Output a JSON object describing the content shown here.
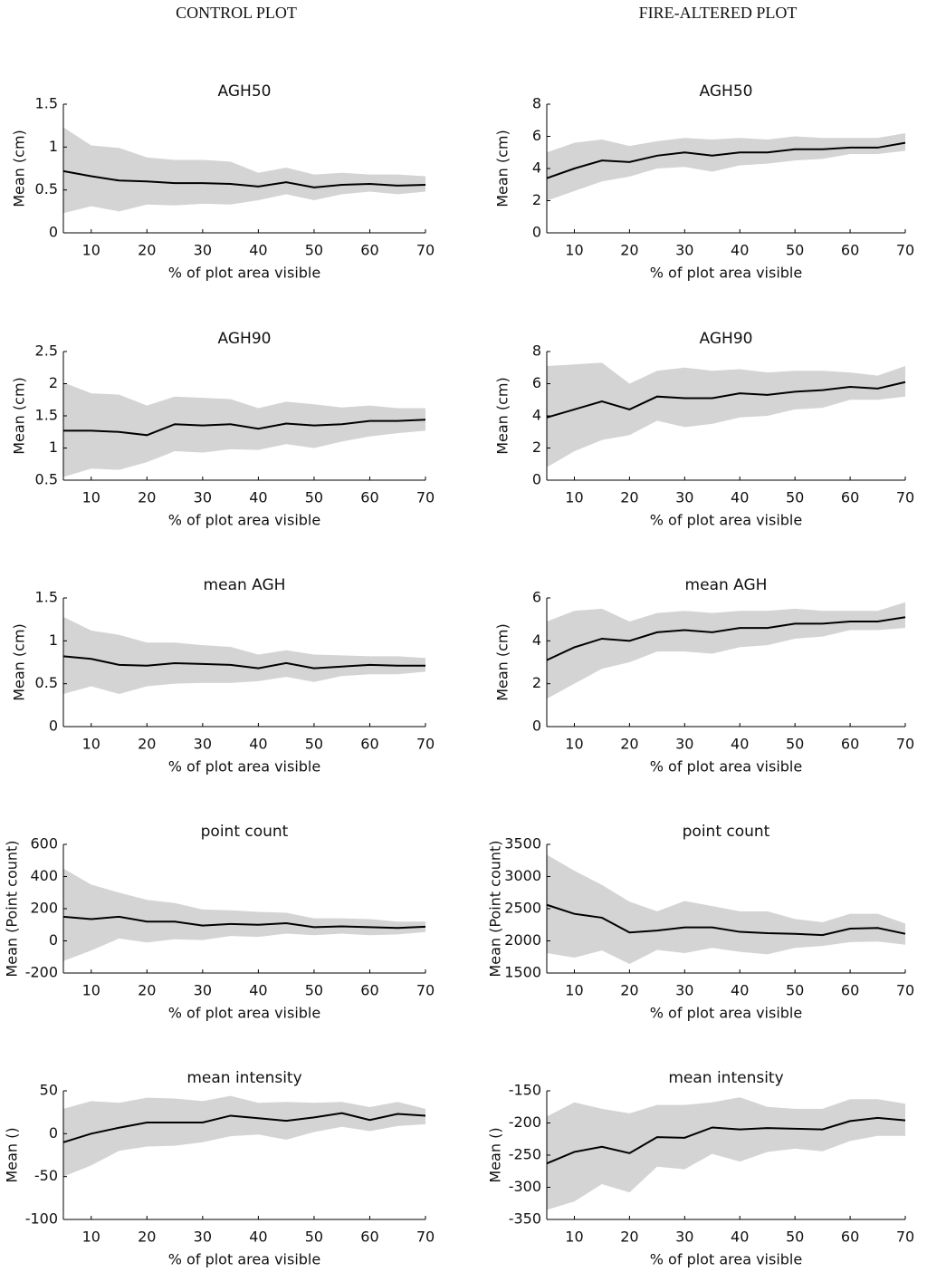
{
  "columns": [
    "CONTROL PLOT",
    "FIRE-ALTERED PLOT"
  ],
  "chart_data": [
    {
      "type": "line",
      "title": "AGH50",
      "xlabel": "% of plot area visible",
      "ylabel": "Mean (cm)",
      "x": [
        5,
        10,
        15,
        20,
        25,
        30,
        35,
        40,
        45,
        50,
        55,
        60,
        65,
        70
      ],
      "xlim": [
        5,
        70
      ],
      "xticks": [
        10,
        20,
        30,
        40,
        50,
        60,
        70
      ],
      "ylim": [
        0,
        1.5
      ],
      "yticks": [
        0,
        0.5,
        1,
        1.5
      ],
      "series": [
        {
          "color": "#000000",
          "band_color": "#d4d4d4",
          "values": [
            0.72,
            0.66,
            0.61,
            0.6,
            0.58,
            0.58,
            0.57,
            0.54,
            0.59,
            0.53,
            0.56,
            0.57,
            0.55,
            0.56
          ],
          "upper": [
            1.23,
            1.02,
            0.99,
            0.88,
            0.85,
            0.85,
            0.83,
            0.7,
            0.76,
            0.68,
            0.7,
            0.68,
            0.68,
            0.66
          ],
          "lower": [
            0.23,
            0.31,
            0.25,
            0.33,
            0.32,
            0.34,
            0.33,
            0.38,
            0.45,
            0.38,
            0.45,
            0.48,
            0.45,
            0.48
          ]
        }
      ]
    },
    {
      "type": "line",
      "title": "AGH50",
      "xlabel": "% of plot area visible",
      "ylabel": "Mean (cm)",
      "x": [
        5,
        10,
        15,
        20,
        25,
        30,
        35,
        40,
        45,
        50,
        55,
        60,
        65,
        70
      ],
      "xlim": [
        5,
        70
      ],
      "xticks": [
        10,
        20,
        30,
        40,
        50,
        60,
        70
      ],
      "ylim": [
        0,
        8
      ],
      "yticks": [
        0,
        2,
        4,
        6,
        8
      ],
      "series": [
        {
          "color": "#000000",
          "band_color": "#d4d4d4",
          "values": [
            3.4,
            4.0,
            4.5,
            4.4,
            4.8,
            5.0,
            4.8,
            5.0,
            5.0,
            5.2,
            5.2,
            5.3,
            5.3,
            5.6
          ],
          "upper": [
            5.0,
            5.6,
            5.8,
            5.4,
            5.7,
            5.9,
            5.8,
            5.9,
            5.8,
            6.0,
            5.9,
            5.9,
            5.9,
            6.2
          ],
          "lower": [
            2.0,
            2.6,
            3.2,
            3.5,
            4.0,
            4.1,
            3.8,
            4.2,
            4.3,
            4.5,
            4.6,
            4.9,
            4.9,
            5.1
          ]
        }
      ]
    },
    {
      "type": "line",
      "title": "AGH90",
      "xlabel": "% of plot area visible",
      "ylabel": "Mean (cm)",
      "x": [
        5,
        10,
        15,
        20,
        25,
        30,
        35,
        40,
        45,
        50,
        55,
        60,
        65,
        70
      ],
      "xlim": [
        5,
        70
      ],
      "xticks": [
        10,
        20,
        30,
        40,
        50,
        60,
        70
      ],
      "ylim": [
        0.5,
        2.5
      ],
      "yticks": [
        0.5,
        1,
        1.5,
        2,
        2.5
      ],
      "series": [
        {
          "color": "#000000",
          "band_color": "#d4d4d4",
          "values": [
            1.27,
            1.27,
            1.25,
            1.2,
            1.37,
            1.35,
            1.37,
            1.3,
            1.38,
            1.35,
            1.37,
            1.42,
            1.42,
            1.44
          ],
          "upper": [
            2.02,
            1.85,
            1.83,
            1.66,
            1.8,
            1.78,
            1.76,
            1.62,
            1.72,
            1.68,
            1.63,
            1.66,
            1.62,
            1.62
          ],
          "lower": [
            0.55,
            0.68,
            0.66,
            0.78,
            0.95,
            0.93,
            0.98,
            0.97,
            1.06,
            1.0,
            1.1,
            1.18,
            1.23,
            1.27
          ]
        }
      ]
    },
    {
      "type": "line",
      "title": "AGH90",
      "xlabel": "% of plot area visible",
      "ylabel": "Mean (cm)",
      "x": [
        5,
        10,
        15,
        20,
        25,
        30,
        35,
        40,
        45,
        50,
        55,
        60,
        65,
        70
      ],
      "xlim": [
        5,
        70
      ],
      "xticks": [
        10,
        20,
        30,
        40,
        50,
        60,
        70
      ],
      "ylim": [
        0,
        8
      ],
      "yticks": [
        0,
        2,
        4,
        6,
        8
      ],
      "series": [
        {
          "color": "#000000",
          "band_color": "#d4d4d4",
          "values": [
            3.9,
            4.4,
            4.9,
            4.4,
            5.2,
            5.1,
            5.1,
            5.4,
            5.3,
            5.5,
            5.6,
            5.8,
            5.7,
            6.1
          ],
          "upper": [
            7.1,
            7.2,
            7.3,
            6.0,
            6.8,
            7.0,
            6.8,
            6.9,
            6.7,
            6.8,
            6.8,
            6.7,
            6.5,
            7.1
          ],
          "lower": [
            0.8,
            1.8,
            2.5,
            2.8,
            3.7,
            3.3,
            3.5,
            3.9,
            4.0,
            4.4,
            4.5,
            5.0,
            5.0,
            5.2
          ]
        }
      ]
    },
    {
      "type": "line",
      "title": "mean AGH",
      "xlabel": "% of plot area visible",
      "ylabel": "Mean (cm)",
      "x": [
        5,
        10,
        15,
        20,
        25,
        30,
        35,
        40,
        45,
        50,
        55,
        60,
        65,
        70
      ],
      "xlim": [
        5,
        70
      ],
      "xticks": [
        10,
        20,
        30,
        40,
        50,
        60,
        70
      ],
      "ylim": [
        0,
        1.5
      ],
      "yticks": [
        0,
        0.5,
        1,
        1.5
      ],
      "series": [
        {
          "color": "#000000",
          "band_color": "#d4d4d4",
          "values": [
            0.82,
            0.79,
            0.72,
            0.71,
            0.74,
            0.73,
            0.72,
            0.68,
            0.74,
            0.68,
            0.7,
            0.72,
            0.71,
            0.71
          ],
          "upper": [
            1.28,
            1.12,
            1.07,
            0.98,
            0.98,
            0.95,
            0.93,
            0.84,
            0.89,
            0.84,
            0.83,
            0.82,
            0.82,
            0.8
          ],
          "lower": [
            0.38,
            0.47,
            0.38,
            0.47,
            0.5,
            0.51,
            0.51,
            0.53,
            0.58,
            0.52,
            0.59,
            0.61,
            0.61,
            0.64
          ]
        }
      ]
    },
    {
      "type": "line",
      "title": "mean AGH",
      "xlabel": "% of plot area visible",
      "ylabel": "Mean (cm)",
      "x": [
        5,
        10,
        15,
        20,
        25,
        30,
        35,
        40,
        45,
        50,
        55,
        60,
        65,
        70
      ],
      "xlim": [
        5,
        70
      ],
      "xticks": [
        10,
        20,
        30,
        40,
        50,
        60,
        70
      ],
      "ylim": [
        0,
        6
      ],
      "yticks": [
        0,
        2,
        4,
        6
      ],
      "series": [
        {
          "color": "#000000",
          "band_color": "#d4d4d4",
          "values": [
            3.1,
            3.7,
            4.1,
            4.0,
            4.4,
            4.5,
            4.4,
            4.6,
            4.6,
            4.8,
            4.8,
            4.9,
            4.9,
            5.1
          ],
          "upper": [
            4.9,
            5.4,
            5.5,
            4.9,
            5.3,
            5.4,
            5.3,
            5.4,
            5.4,
            5.5,
            5.4,
            5.4,
            5.4,
            5.8
          ],
          "lower": [
            1.3,
            2.0,
            2.7,
            3.0,
            3.5,
            3.5,
            3.4,
            3.7,
            3.8,
            4.1,
            4.2,
            4.5,
            4.5,
            4.6
          ]
        }
      ]
    },
    {
      "type": "line",
      "title": "point count",
      "xlabel": "% of plot area visible",
      "ylabel": "Mean (Point count)",
      "x": [
        5,
        10,
        15,
        20,
        25,
        30,
        35,
        40,
        45,
        50,
        55,
        60,
        65,
        70
      ],
      "xlim": [
        5,
        70
      ],
      "xticks": [
        10,
        20,
        30,
        40,
        50,
        60,
        70
      ],
      "ylim": [
        -200,
        600
      ],
      "yticks": [
        -200,
        0,
        200,
        400,
        600
      ],
      "series": [
        {
          "color": "#000000",
          "band_color": "#d4d4d4",
          "values": [
            150,
            135,
            150,
            120,
            120,
            95,
            105,
            100,
            110,
            85,
            90,
            85,
            80,
            88
          ],
          "upper": [
            450,
            350,
            300,
            255,
            235,
            195,
            190,
            180,
            175,
            140,
            140,
            135,
            120,
            120
          ],
          "lower": [
            -125,
            -60,
            15,
            -10,
            10,
            5,
            30,
            25,
            45,
            35,
            45,
            35,
            40,
            55
          ]
        }
      ]
    },
    {
      "type": "line",
      "title": "point count",
      "xlabel": "% of plot area visible",
      "ylabel": "Mean (Point count)",
      "x": [
        5,
        10,
        15,
        20,
        25,
        30,
        35,
        40,
        45,
        50,
        55,
        60,
        65,
        70
      ],
      "xlim": [
        5,
        70
      ],
      "xticks": [
        10,
        20,
        30,
        40,
        50,
        60,
        70
      ],
      "ylim": [
        1500,
        3500
      ],
      "yticks": [
        1500,
        2000,
        2500,
        3000,
        3500
      ],
      "series": [
        {
          "color": "#000000",
          "band_color": "#d4d4d4",
          "values": [
            2560,
            2420,
            2360,
            2130,
            2160,
            2210,
            2210,
            2140,
            2120,
            2110,
            2090,
            2190,
            2200,
            2110
          ],
          "upper": [
            3340,
            3090,
            2870,
            2610,
            2460,
            2620,
            2540,
            2460,
            2460,
            2340,
            2290,
            2420,
            2420,
            2270
          ],
          "lower": [
            1810,
            1740,
            1850,
            1640,
            1860,
            1810,
            1890,
            1830,
            1790,
            1890,
            1920,
            1980,
            1990,
            1940
          ]
        }
      ]
    },
    {
      "type": "line",
      "title": "mean intensity",
      "xlabel": "% of plot area visible",
      "ylabel": "Mean ()",
      "x": [
        5,
        10,
        15,
        20,
        25,
        30,
        35,
        40,
        45,
        50,
        55,
        60,
        65,
        70
      ],
      "xlim": [
        5,
        70
      ],
      "xticks": [
        10,
        20,
        30,
        40,
        50,
        60,
        70
      ],
      "ylim": [
        -100,
        50
      ],
      "yticks": [
        -100,
        -50,
        0,
        50
      ],
      "series": [
        {
          "color": "#000000",
          "band_color": "#d4d4d4",
          "values": [
            -10,
            0,
            7,
            13,
            13,
            13,
            21,
            18,
            15,
            19,
            24,
            16,
            23,
            21
          ],
          "upper": [
            29,
            38,
            36,
            42,
            41,
            38,
            44,
            36,
            37,
            36,
            37,
            31,
            37,
            29
          ],
          "lower": [
            -50,
            -37,
            -20,
            -15,
            -14,
            -10,
            -3,
            -1,
            -7,
            2,
            8,
            3,
            9,
            11
          ]
        }
      ]
    },
    {
      "type": "line",
      "title": "mean intensity",
      "xlabel": "% of plot area visible",
      "ylabel": "Mean ()",
      "x": [
        5,
        10,
        15,
        20,
        25,
        30,
        35,
        40,
        45,
        50,
        55,
        60,
        65,
        70
      ],
      "xlim": [
        5,
        70
      ],
      "xticks": [
        10,
        20,
        30,
        40,
        50,
        60,
        70
      ],
      "ylim": [
        -350,
        -150
      ],
      "yticks": [
        -350,
        -300,
        -250,
        -200,
        -150
      ],
      "series": [
        {
          "color": "#000000",
          "band_color": "#d4d4d4",
          "values": [
            -263,
            -245,
            -237,
            -247,
            -222,
            -223,
            -207,
            -210,
            -208,
            -209,
            -210,
            -197,
            -192,
            -196
          ],
          "upper": [
            -190,
            -168,
            -178,
            -185,
            -172,
            -172,
            -168,
            -160,
            -175,
            -178,
            -178,
            -163,
            -163,
            -170
          ],
          "lower": [
            -335,
            -322,
            -295,
            -308,
            -268,
            -272,
            -248,
            -260,
            -245,
            -240,
            -244,
            -228,
            -220,
            -220
          ]
        }
      ]
    }
  ]
}
